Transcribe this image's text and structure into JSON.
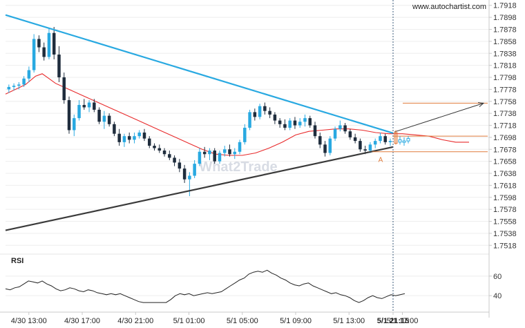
{
  "site": "www.autochartist.com",
  "watermark": "What2Trade",
  "colors": {
    "resistance": "#29a9e1",
    "support": "#3a3a3a",
    "ma": "#e8292a",
    "bull": "#29a9e1",
    "bear": "#1f2d3d",
    "level": "#e07a3a",
    "forecast": "#333333",
    "rsi": "#222222",
    "grid": "#eeeeee",
    "axis": "#c8c8c8"
  },
  "chart_data": [
    {
      "type": "candlestick",
      "title": "",
      "y_ticks": [
        "1.7918",
        "1.7898",
        "1.7878",
        "1.7858",
        "1.7838",
        "1.7818",
        "1.7798",
        "1.7778",
        "1.7758",
        "1.7738",
        "1.7718",
        "1.7698",
        "1.7678",
        "1.7658",
        "1.7638",
        "1.7618",
        "1.7598",
        "1.7578",
        "1.7558",
        "1.7538",
        "1.7518"
      ],
      "ylim": [
        1.7508,
        1.792
      ],
      "x_ticks": [
        "4/30 13:00",
        "4/30 17:00",
        "4/30 21:00",
        "5/1 01:00",
        "5/1 05:00",
        "5/1 09:00",
        "5/1 13:00",
        "5/1 17:00",
        "5/1 21:15"
      ],
      "x_tick_hours": [
        0,
        4,
        8,
        12,
        16,
        20,
        24,
        28,
        32.25
      ],
      "x_range_hours": [
        -1.75,
        34.5
      ],
      "grid": true,
      "legend": "none",
      "ohlc": [
        [
          1.7778,
          1.7786,
          1.7772,
          1.7782
        ],
        [
          1.7782,
          1.7788,
          1.7776,
          1.7784
        ],
        [
          1.7784,
          1.779,
          1.7778,
          1.7786
        ],
        [
          1.7786,
          1.78,
          1.7782,
          1.7796
        ],
        [
          1.7796,
          1.7816,
          1.779,
          1.781
        ],
        [
          1.781,
          1.787,
          1.7806,
          1.7862
        ],
        [
          1.7862,
          1.7868,
          1.784,
          1.7848
        ],
        [
          1.7848,
          1.7856,
          1.7826,
          1.7832
        ],
        [
          1.7832,
          1.788,
          1.7828,
          1.7872
        ],
        [
          1.7872,
          1.7882,
          1.7828,
          1.7836
        ],
        [
          1.7836,
          1.785,
          1.779,
          1.7798
        ],
        [
          1.7798,
          1.7806,
          1.7754,
          1.776
        ],
        [
          1.776,
          1.7766,
          1.7704,
          1.771
        ],
        [
          1.771,
          1.7736,
          1.77,
          1.773
        ],
        [
          1.773,
          1.776,
          1.7726,
          1.7752
        ],
        [
          1.7752,
          1.7762,
          1.7744,
          1.7748
        ],
        [
          1.7748,
          1.776,
          1.774,
          1.7756
        ],
        [
          1.7756,
          1.7762,
          1.774,
          1.7744
        ],
        [
          1.7744,
          1.7748,
          1.772,
          1.7724
        ],
        [
          1.7724,
          1.7742,
          1.7712,
          1.7734
        ],
        [
          1.7734,
          1.7738,
          1.7716,
          1.772
        ],
        [
          1.772,
          1.7724,
          1.77,
          1.7704
        ],
        [
          1.7704,
          1.7712,
          1.7684,
          1.769
        ],
        [
          1.769,
          1.7704,
          1.7682,
          1.77
        ],
        [
          1.77,
          1.7706,
          1.7688,
          1.7694
        ],
        [
          1.7694,
          1.7706,
          1.7688,
          1.77
        ],
        [
          1.77,
          1.771,
          1.7696,
          1.7706
        ],
        [
          1.7706,
          1.7712,
          1.7692,
          1.7696
        ],
        [
          1.7696,
          1.77,
          1.768,
          1.7684
        ],
        [
          1.7684,
          1.7688,
          1.7676,
          1.768
        ],
        [
          1.768,
          1.7686,
          1.7672,
          1.7676
        ],
        [
          1.7676,
          1.768,
          1.7666,
          1.767
        ],
        [
          1.767,
          1.7676,
          1.766,
          1.7664
        ],
        [
          1.7664,
          1.7668,
          1.765,
          1.7656
        ],
        [
          1.7656,
          1.7662,
          1.764,
          1.7646
        ],
        [
          1.7646,
          1.7652,
          1.7622,
          1.7628
        ],
        [
          1.7628,
          1.764,
          1.76,
          1.7634
        ],
        [
          1.7634,
          1.766,
          1.763,
          1.7654
        ],
        [
          1.7654,
          1.768,
          1.765,
          1.7674
        ],
        [
          1.7674,
          1.7682,
          1.7664,
          1.767
        ],
        [
          1.767,
          1.768,
          1.766,
          1.7676
        ],
        [
          1.7676,
          1.768,
          1.7654,
          1.7658
        ],
        [
          1.7658,
          1.7676,
          1.7654,
          1.7672
        ],
        [
          1.7672,
          1.7684,
          1.7666,
          1.7678
        ],
        [
          1.7678,
          1.7686,
          1.7666,
          1.767
        ],
        [
          1.767,
          1.768,
          1.7662,
          1.7674
        ],
        [
          1.7674,
          1.7694,
          1.767,
          1.769
        ],
        [
          1.769,
          1.772,
          1.7686,
          1.7714
        ],
        [
          1.7714,
          1.7744,
          1.771,
          1.774
        ],
        [
          1.774,
          1.7746,
          1.7726,
          1.7732
        ],
        [
          1.7732,
          1.7754,
          1.7728,
          1.775
        ],
        [
          1.775,
          1.7756,
          1.7736,
          1.7742
        ],
        [
          1.7742,
          1.7748,
          1.773,
          1.7736
        ],
        [
          1.7736,
          1.774,
          1.772,
          1.7726
        ],
        [
          1.7726,
          1.773,
          1.7714,
          1.772
        ],
        [
          1.772,
          1.7728,
          1.771,
          1.7714
        ],
        [
          1.7714,
          1.773,
          1.771,
          1.7726
        ],
        [
          1.7726,
          1.7732,
          1.7712,
          1.7718
        ],
        [
          1.7718,
          1.773,
          1.7714,
          1.7724
        ],
        [
          1.7724,
          1.7736,
          1.7716,
          1.773
        ],
        [
          1.773,
          1.7734,
          1.7714,
          1.7718
        ],
        [
          1.7718,
          1.7724,
          1.7696,
          1.77
        ],
        [
          1.77,
          1.7706,
          1.768,
          1.7686
        ],
        [
          1.7686,
          1.7692,
          1.7666,
          1.7672
        ],
        [
          1.7672,
          1.77,
          1.7668,
          1.7696
        ],
        [
          1.7696,
          1.7716,
          1.7692,
          1.7712
        ],
        [
          1.7712,
          1.7726,
          1.7708,
          1.7718
        ],
        [
          1.7718,
          1.7722,
          1.7704,
          1.7708
        ],
        [
          1.7708,
          1.7712,
          1.7694,
          1.7698
        ],
        [
          1.7698,
          1.7704,
          1.7688,
          1.7692
        ],
        [
          1.7692,
          1.7696,
          1.7674,
          1.7678
        ],
        [
          1.7678,
          1.7684,
          1.767,
          1.7676
        ],
        [
          1.7676,
          1.769,
          1.7672,
          1.7686
        ],
        [
          1.7686,
          1.7696,
          1.768,
          1.7692
        ],
        [
          1.7692,
          1.7706,
          1.7688,
          1.77
        ],
        [
          1.77,
          1.7704,
          1.7686,
          1.769
        ],
        [
          1.769,
          1.7696,
          1.7684,
          1.7692
        ]
      ],
      "ma": [
        [
          -1.75,
          1.777
        ],
        [
          -1.0,
          1.7778
        ],
        [
          -0.25,
          1.7786
        ],
        [
          0.5,
          1.78
        ],
        [
          1.0,
          1.7804
        ],
        [
          1.5,
          1.7796
        ],
        [
          2.0,
          1.7788
        ],
        [
          3.0,
          1.7778
        ],
        [
          4.0,
          1.7768
        ],
        [
          5.0,
          1.7758
        ],
        [
          6.0,
          1.7748
        ],
        [
          7.0,
          1.7738
        ],
        [
          8.0,
          1.7728
        ],
        [
          9.0,
          1.7718
        ],
        [
          10.0,
          1.7708
        ],
        [
          11.0,
          1.7698
        ],
        [
          12.0,
          1.7688
        ],
        [
          13.0,
          1.7678
        ],
        [
          14.0,
          1.767
        ],
        [
          15.0,
          1.7668
        ],
        [
          16.0,
          1.7668
        ],
        [
          17.0,
          1.7672
        ],
        [
          18.0,
          1.768
        ],
        [
          19.0,
          1.769
        ],
        [
          20.0,
          1.7702
        ],
        [
          21.0,
          1.7708
        ],
        [
          22.0,
          1.771
        ],
        [
          23.0,
          1.7712
        ],
        [
          24.0,
          1.7712
        ],
        [
          25.0,
          1.771
        ],
        [
          26.0,
          1.7706
        ],
        [
          27.0,
          1.7704
        ],
        [
          28.0,
          1.7704
        ],
        [
          29.0,
          1.7702
        ],
        [
          30.0,
          1.77
        ],
        [
          31.0,
          1.7694
        ],
        [
          32.0,
          1.769
        ],
        [
          32.25,
          1.769
        ],
        [
          33.0,
          1.769
        ]
      ],
      "resistance_line": [
        [
          -1.75,
          1.7902
        ],
        [
          32.25,
          1.7705
        ]
      ],
      "support_line": [
        [
          -1.75,
          1.7543
        ],
        [
          32.25,
          1.7682
        ]
      ],
      "level_upper": {
        "value": 1.77,
        "from_hours": 32.25,
        "to_hours": 34.5
      },
      "level_lower": {
        "value": 1.7674,
        "from_hours": 32.25,
        "to_hours": 34.5
      },
      "target_level": {
        "value": 1.7755,
        "from_hours": 33.0,
        "to_hours": 34.5
      },
      "forecast_arrow": [
        [
          32.3,
          1.7707
        ],
        [
          34.1,
          1.7755
        ]
      ],
      "pattern_point": {
        "label": "A",
        "hours": 31.8,
        "value": 1.7671
      },
      "breakout_candle": [
        1.7688,
        1.771,
        1.7686,
        1.7706
      ]
    },
    {
      "type": "line",
      "title": "RSI",
      "y_ticks": [
        "60",
        "40"
      ],
      "ylim": [
        26,
        74
      ],
      "values": [
        47,
        46,
        48,
        49,
        52,
        55,
        54,
        53,
        55,
        52,
        50,
        47,
        45,
        46,
        48,
        47,
        45,
        44,
        46,
        45,
        43,
        42,
        41,
        42,
        41,
        42,
        40,
        38,
        36,
        34,
        33,
        33,
        33,
        33,
        33,
        33,
        36,
        40,
        42,
        41,
        42,
        40,
        41,
        42,
        43,
        42,
        43,
        44,
        47,
        50,
        53,
        56,
        58,
        62,
        64,
        65,
        64,
        66,
        63,
        61,
        58,
        56,
        53,
        51,
        50,
        52,
        53,
        50,
        48,
        46,
        44,
        42,
        43,
        41,
        40,
        38,
        35,
        33,
        35,
        38,
        40,
        38,
        37,
        39,
        41,
        40,
        41,
        42
      ]
    }
  ]
}
